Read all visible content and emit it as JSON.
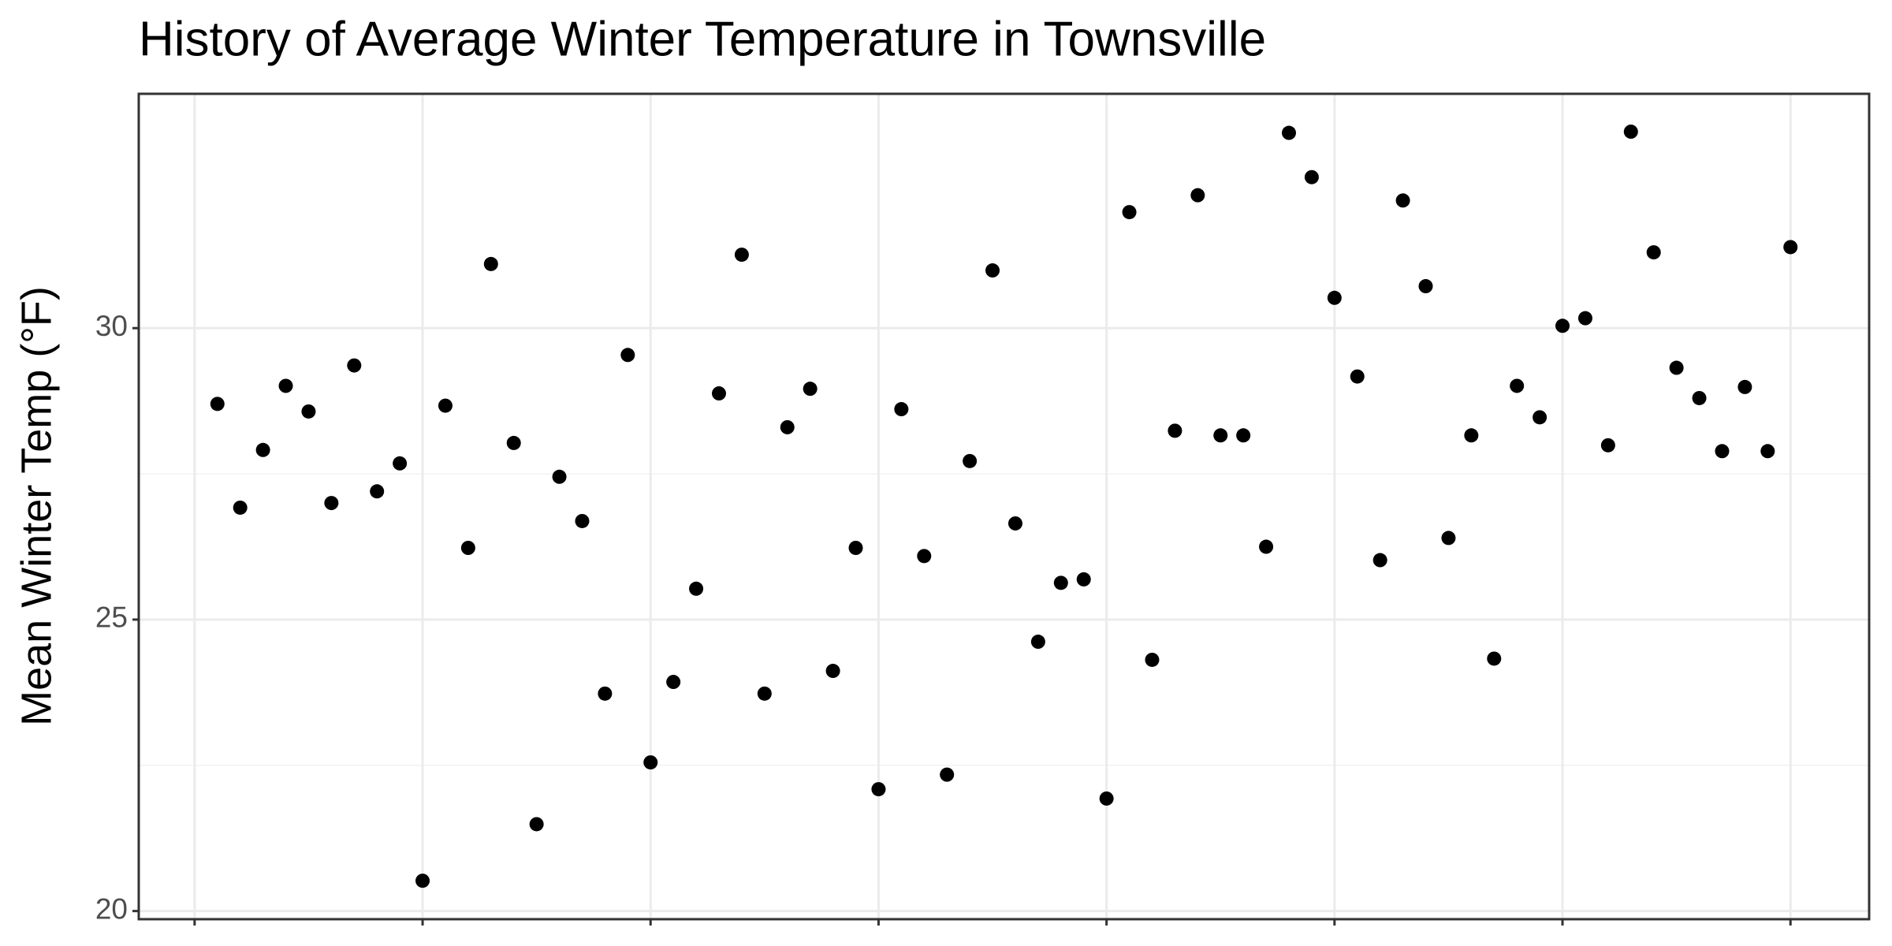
{
  "chart_data": {
    "type": "scatter",
    "title": "History of Average Winter Temperature in Townsville",
    "y_label": "Mean Winter Temp (°F)",
    "x": [
      1,
      2,
      3,
      4,
      5,
      6,
      7,
      8,
      9,
      10,
      11,
      12,
      13,
      14,
      15,
      16,
      17,
      18,
      19,
      20,
      21,
      22,
      23,
      24,
      25,
      26,
      27,
      28,
      29,
      30,
      31,
      32,
      33,
      34,
      35,
      36,
      37,
      38,
      39,
      40,
      41,
      42,
      43,
      44,
      45,
      46,
      47,
      48,
      49,
      50,
      51,
      52,
      53,
      54,
      55,
      56,
      57,
      58,
      59,
      60,
      61,
      62,
      63,
      64,
      65,
      66,
      67,
      68,
      69,
      70
    ],
    "values": [
      28.7,
      26.92,
      27.91,
      29.01,
      28.57,
      27.0,
      29.36,
      27.2,
      27.68,
      20.52,
      28.67,
      26.23,
      31.1,
      28.03,
      21.49,
      27.45,
      26.69,
      23.73,
      29.54,
      22.55,
      23.93,
      25.53,
      28.88,
      31.26,
      23.73,
      28.3,
      28.96,
      24.12,
      26.23,
      22.09,
      28.61,
      26.09,
      22.34,
      27.72,
      30.99,
      26.65,
      24.62,
      25.63,
      25.69,
      21.93,
      31.99,
      24.31,
      28.24,
      32.28,
      28.16,
      28.16,
      26.25,
      33.35,
      32.59,
      30.52,
      29.17,
      26.02,
      32.19,
      30.72,
      26.4,
      28.16,
      24.33,
      29.01,
      28.47,
      30.04,
      30.17,
      27.99,
      33.37,
      31.3,
      29.32,
      28.8,
      27.89,
      28.99,
      27.89,
      31.39
    ],
    "color": "#000000",
    "xlim": [
      -2.45,
      73.45
    ],
    "xticks": [
      0,
      10,
      20,
      30,
      40,
      50,
      60,
      70
    ],
    "ylim": [
      19.86,
      34.02
    ],
    "yticks": [
      20,
      25,
      30
    ],
    "grid": true
  }
}
